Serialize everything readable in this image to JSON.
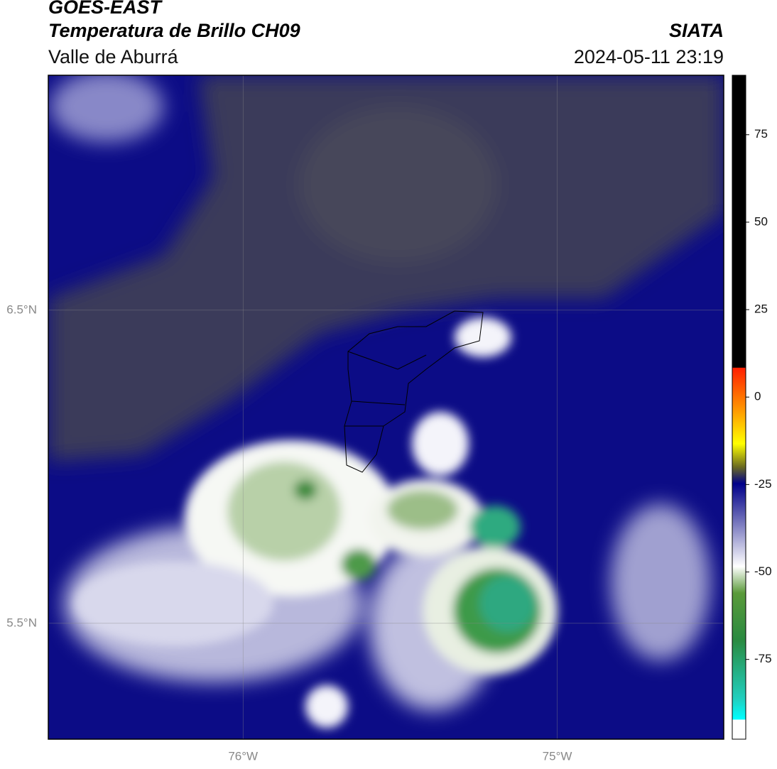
{
  "header": {
    "title": "GOES-EAST",
    "subtitle": "Temperatura de Brillo CH09",
    "region": "Valle de Aburrá",
    "source": "SIATA",
    "datetime": "2024-05-11 23:19"
  },
  "map": {
    "xlim": [
      -76.62,
      -74.47
    ],
    "ylim": [
      5.13,
      7.25
    ],
    "xticks": [
      {
        "value": -76,
        "label": "76°W"
      },
      {
        "value": -75,
        "label": "75°W"
      }
    ],
    "yticks": [
      {
        "value": 6.5,
        "label": "6.5°N"
      },
      {
        "value": 5.5,
        "label": "5.5°N"
      }
    ]
  },
  "colorbar": {
    "lim": [
      -97.8,
      92
    ],
    "ticks": [
      75,
      50,
      25,
      0,
      -25,
      -50,
      -75
    ]
  }
}
